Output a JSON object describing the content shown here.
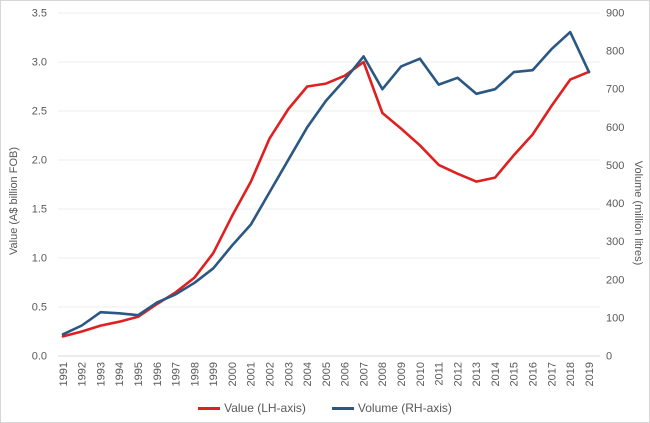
{
  "chart_data": {
    "type": "line",
    "title": "",
    "categories": [
      "1991",
      "1992",
      "1993",
      "1994",
      "1995",
      "1996",
      "1997",
      "1998",
      "1999",
      "2000",
      "2001",
      "2002",
      "2003",
      "2004",
      "2005",
      "2006",
      "2007",
      "2008",
      "2009",
      "2010",
      "2011",
      "2012",
      "2013",
      "2014",
      "2015",
      "2016",
      "2017",
      "2018",
      "2019"
    ],
    "series": [
      {
        "name": "Value (LH-axis)",
        "axis": "left",
        "color": "#e02020",
        "values": [
          0.2,
          0.25,
          0.31,
          0.35,
          0.4,
          0.53,
          0.65,
          0.8,
          1.05,
          1.43,
          1.78,
          2.22,
          2.52,
          2.75,
          2.78,
          2.86,
          3.0,
          2.48,
          2.32,
          2.15,
          1.95,
          1.86,
          1.78,
          1.82,
          2.05,
          2.26,
          2.55,
          2.82,
          2.9
        ]
      },
      {
        "name": "Volume (RH-axis)",
        "axis": "right",
        "color": "#2a5784",
        "values": [
          57,
          80,
          115,
          112,
          107,
          140,
          162,
          192,
          230,
          290,
          345,
          430,
          515,
          600,
          670,
          725,
          786,
          700,
          760,
          780,
          712,
          730,
          688,
          700,
          745,
          750,
          805,
          850,
          745
        ]
      }
    ],
    "left_axis": {
      "title": "Value (A$ billion FOB)",
      "min": 0,
      "max": 3.5,
      "tick_labels": [
        "0.0",
        "0.5",
        "1.0",
        "1.5",
        "2.0",
        "2.5",
        "3.0",
        "3.5"
      ]
    },
    "right_axis": {
      "title": "Volume (million litres)",
      "min": 0,
      "max": 900,
      "tick_labels": [
        "0",
        "100",
        "200",
        "300",
        "400",
        "500",
        "600",
        "700",
        "800",
        "900"
      ]
    },
    "x_axis": {
      "label_rotation": -90
    },
    "legend": {
      "position": "bottom",
      "entries": [
        "Value (LH-axis)",
        "Volume (RH-axis)"
      ]
    },
    "grid": "horizontal",
    "colors": {
      "text": "#595959",
      "gridline": "#ededed",
      "baseline": "#d9d9d9",
      "background": "#ffffff"
    }
  }
}
